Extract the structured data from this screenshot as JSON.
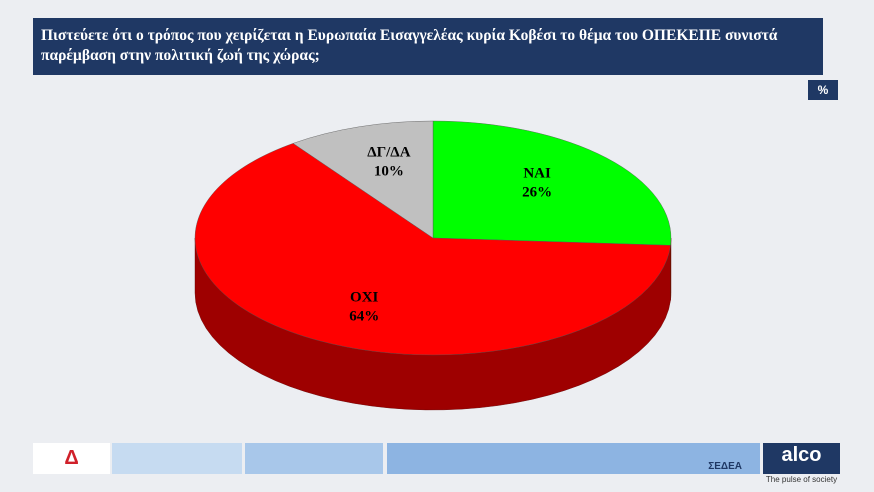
{
  "chart_data": {
    "type": "pie",
    "title": "Πιστεύετε  ότι ο τρόπος που χειρίζεται η Ευρωπαία Εισαγγελέας κυρία Κοβέσι το θέμα του ΟΠΕΚΕΠΕ συνιστά παρέμβαση στην πολιτική ζωή της χώρας;",
    "unit": "%",
    "categories": [
      "ΝΑΙ",
      "ΟΧΙ",
      "ΔΓ/ΔΑ"
    ],
    "values": [
      26,
      64,
      10
    ],
    "value_labels": [
      "26%",
      "64%",
      "10%"
    ],
    "colors": [
      "#00ff00",
      "#ff0000",
      "#c0c0c0"
    ]
  },
  "footer": {
    "logo_left": "Δ",
    "logo_sedea": "ΣΕΔΕΑ",
    "logo_alco": "alco",
    "alco_tagline": "The pulse of society"
  }
}
